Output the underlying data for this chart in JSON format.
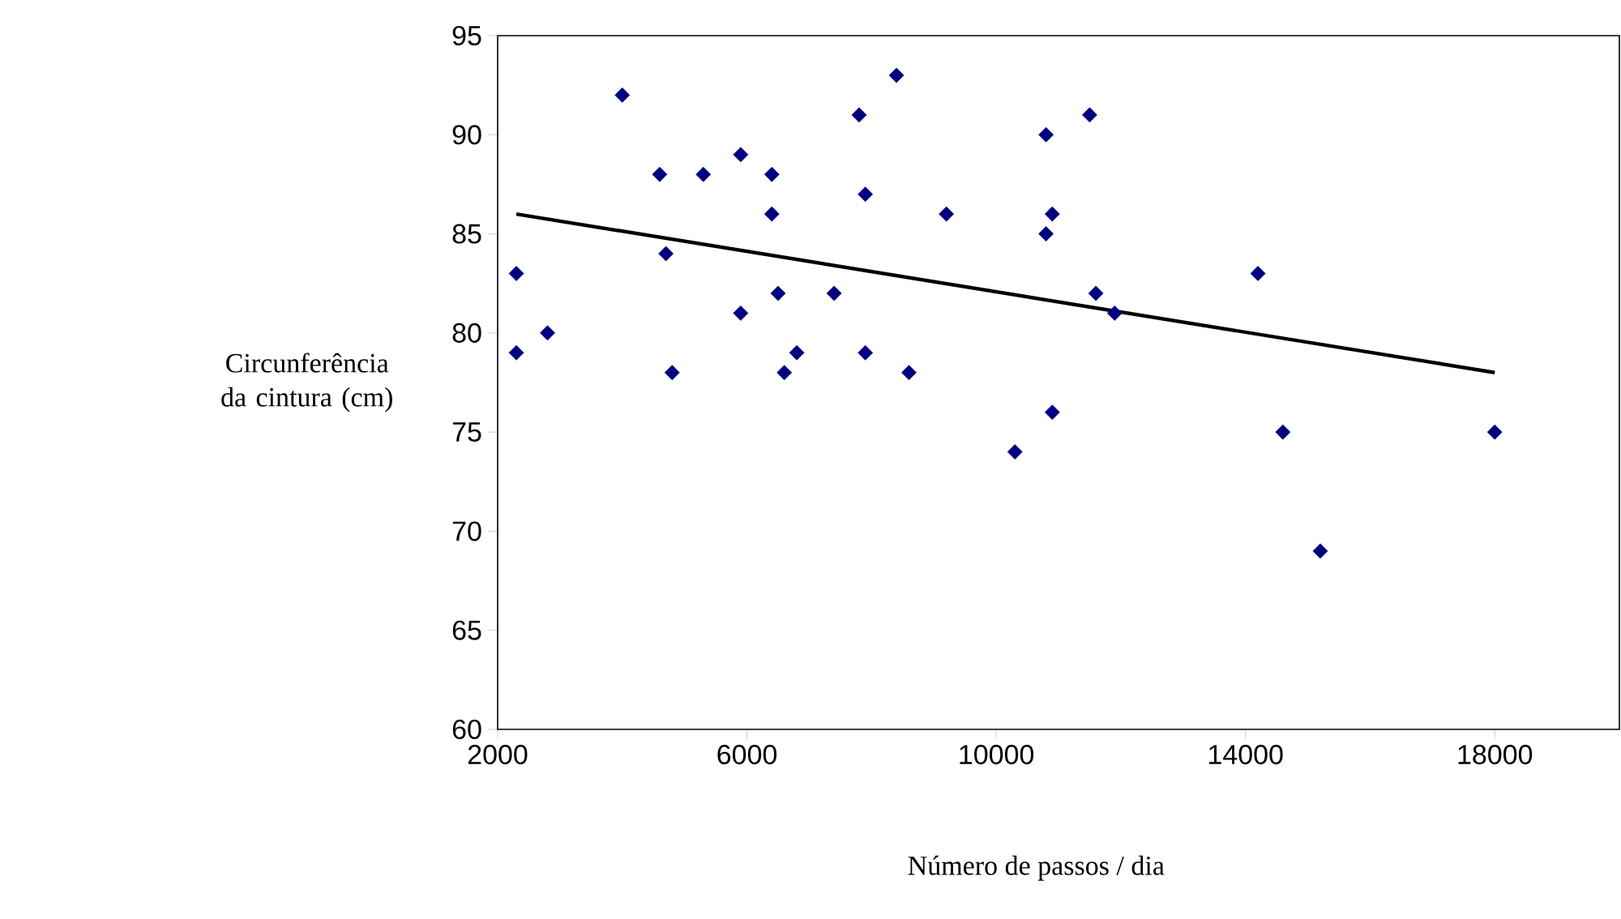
{
  "chart_data": {
    "type": "scatter",
    "xlabel": "Número de passos / dia",
    "ylabel": "Circunferência da cintura (cm)",
    "xlim": [
      2000,
      20000
    ],
    "xticks": [
      2000,
      6000,
      10000,
      14000,
      18000
    ],
    "ylim": [
      60,
      95
    ],
    "yticks": [
      60,
      65,
      70,
      75,
      80,
      85,
      90,
      95
    ],
    "series": [
      {
        "color": "#000080",
        "marker": "diamond",
        "x": [
          2300,
          2300,
          2800,
          4000,
          4600,
          4700,
          4800,
          5300,
          5900,
          5900,
          6400,
          6400,
          6500,
          6600,
          6800,
          7400,
          7800,
          7900,
          7900,
          8400,
          8600,
          9200,
          10300,
          10800,
          10900,
          11500,
          10800,
          14200,
          11600,
          11900,
          10900,
          14600,
          18000,
          15200
        ],
        "values": [
          83,
          79,
          80,
          92,
          88,
          84,
          78,
          88,
          89,
          81,
          88,
          86,
          82,
          78,
          79,
          82,
          91,
          87,
          79,
          93,
          78,
          86,
          74,
          90,
          86,
          91,
          85,
          83,
          82,
          81,
          76,
          75,
          75,
          69
        ]
      },
      {
        "type": "line",
        "color": "#000000",
        "marker": "none",
        "x": [
          2300,
          18000
        ],
        "values": [
          86,
          78
        ]
      }
    ]
  }
}
